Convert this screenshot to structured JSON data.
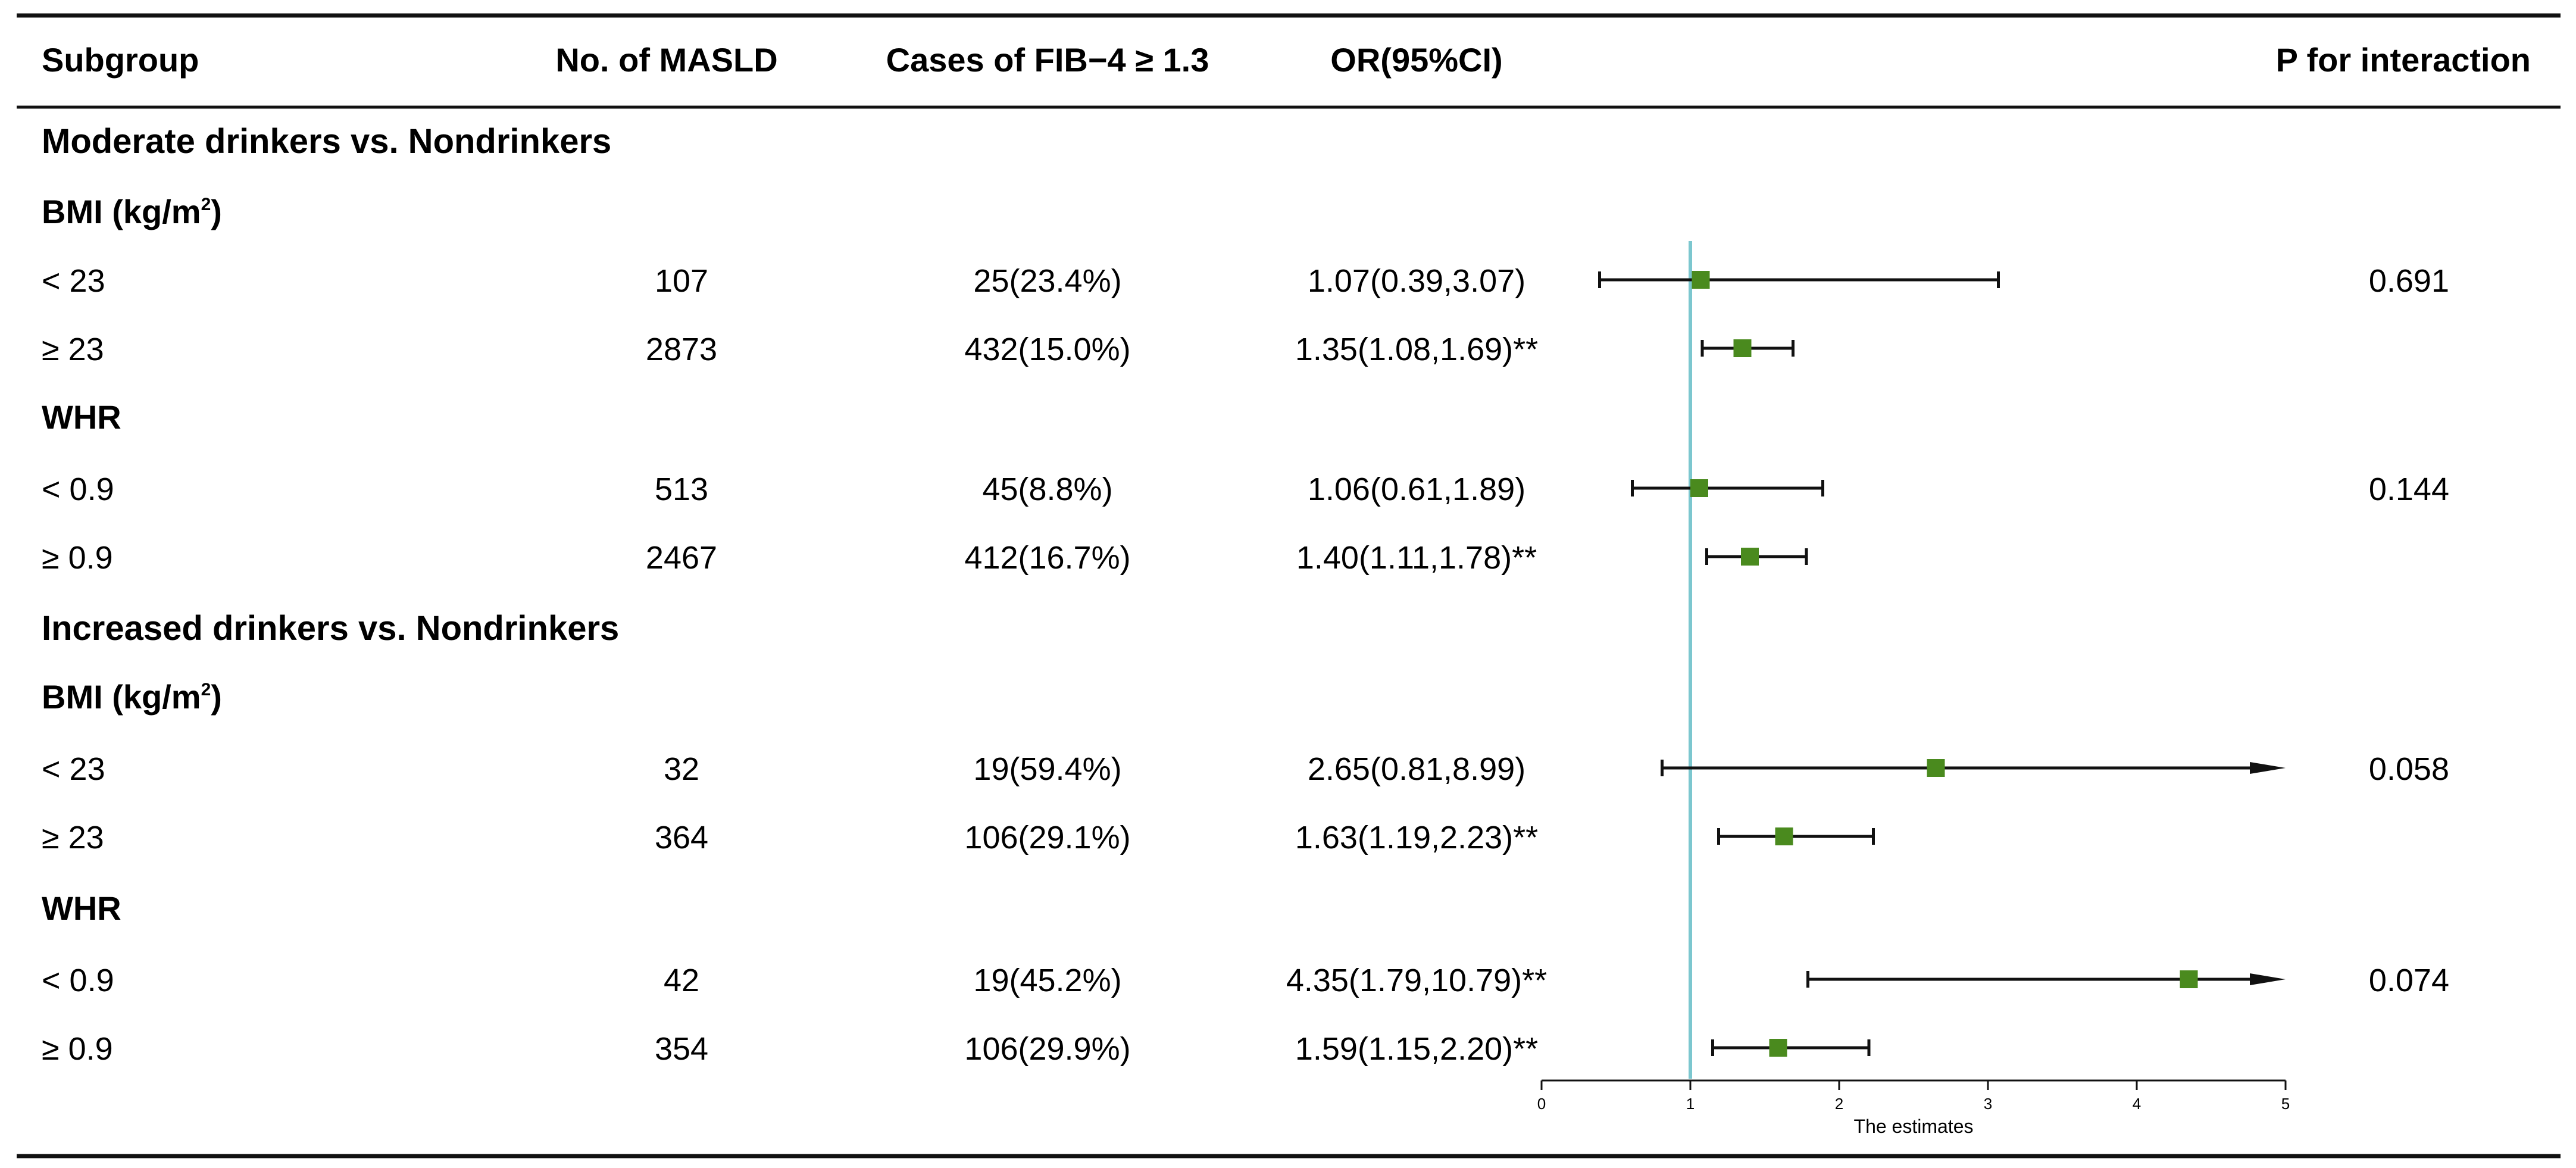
{
  "chart_data": {
    "type": "forest",
    "columns": [
      "Subgroup",
      "No. of MASLD",
      "Cases of FIB−4 ≥ 1.3",
      "OR(95%CI)",
      "P for interaction"
    ],
    "sections": [
      {
        "title": "Moderate drinkers vs. Nondrinkers"
      },
      {
        "title": "Increased drinkers vs. Nondrinkers"
      }
    ],
    "subgroups": [
      {
        "label": "BMI (kg/m",
        "sup": "2",
        "close": ")"
      },
      {
        "label": "WHR"
      },
      {
        "label": "BMI (kg/m",
        "sup": "2",
        "close": ")"
      },
      {
        "label": "WHR"
      }
    ],
    "rows": [
      {
        "label": "< 23",
        "n": "107",
        "cases": "25(23.4%)",
        "or_text": "1.07(0.39,3.07)",
        "p": "0.691",
        "or": 1.07,
        "lo": 0.39,
        "hi": 3.07
      },
      {
        "label": "≥ 23",
        "n": "2873",
        "cases": "432(15.0%)",
        "or_text": "1.35(1.08,1.69)**",
        "p": "",
        "or": 1.35,
        "lo": 1.08,
        "hi": 1.69
      },
      {
        "label": "< 0.9",
        "n": "513",
        "cases": "45(8.8%)",
        "or_text": "1.06(0.61,1.89)",
        "p": "0.144",
        "or": 1.06,
        "lo": 0.61,
        "hi": 1.89
      },
      {
        "label": "≥ 0.9",
        "n": "2467",
        "cases": "412(16.7%)",
        "or_text": "1.40(1.11,1.78)**",
        "p": "",
        "or": 1.4,
        "lo": 1.11,
        "hi": 1.78
      },
      {
        "label": "< 23",
        "n": "32",
        "cases": "19(59.4%)",
        "or_text": "2.65(0.81,8.99)",
        "p": "0.058",
        "or": 2.65,
        "lo": 0.81,
        "hi": 8.99
      },
      {
        "label": "≥ 23",
        "n": "364",
        "cases": "106(29.1%)",
        "or_text": "1.63(1.19,2.23)**",
        "p": "",
        "or": 1.63,
        "lo": 1.19,
        "hi": 2.23
      },
      {
        "label": "< 0.9",
        "n": "42",
        "cases": "19(45.2%)",
        "or_text": "4.35(1.79,10.79)**",
        "p": "0.074",
        "or": 4.35,
        "lo": 1.79,
        "hi": 10.79
      },
      {
        "label": "≥ 0.9",
        "n": "354",
        "cases": "106(29.9%)",
        "or_text": "1.59(1.15,2.20)**",
        "p": "",
        "or": 1.59,
        "lo": 1.15,
        "hi": 2.2
      }
    ],
    "x_axis": {
      "label": "The estimates",
      "range": [
        0,
        5
      ],
      "ticks": [
        0,
        1,
        2,
        3,
        4,
        5
      ]
    },
    "reference_line": 1,
    "colors": {
      "marker": "#4a8a1e",
      "reference": "#7cc7cf",
      "line": "#111111"
    }
  }
}
